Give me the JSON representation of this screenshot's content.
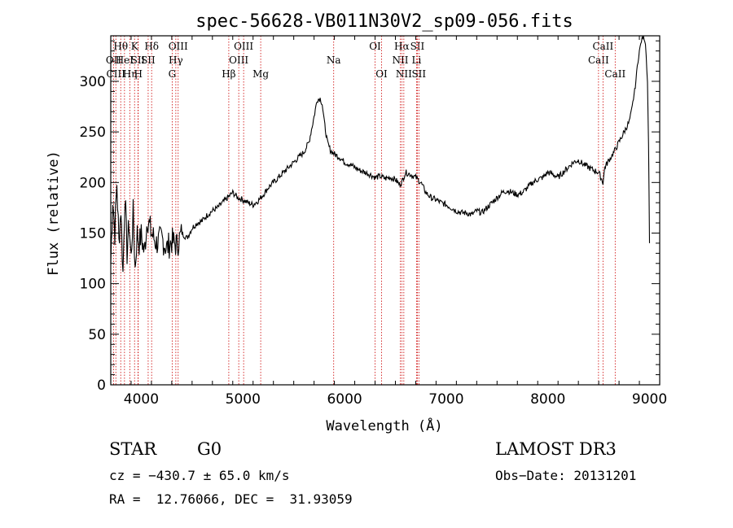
{
  "chart_data": {
    "type": "line",
    "title": "spec-56628-VB011N30V2_sp09-056.fits",
    "xlabel": "Wavelength (Å)",
    "ylabel": "Flux (relative)",
    "xlim": [
      3700,
      9100
    ],
    "ylim": [
      0,
      345
    ],
    "xticks": [
      4000,
      5000,
      6000,
      7000,
      8000,
      9000
    ],
    "yticks": [
      0,
      50,
      100,
      150,
      200,
      250,
      300
    ],
    "grid": false,
    "series": [
      {
        "name": "flux",
        "x": [
          3700,
          3720,
          3740,
          3760,
          3780,
          3800,
          3820,
          3840,
          3860,
          3880,
          3900,
          3920,
          3940,
          3960,
          3980,
          4000,
          4030,
          4060,
          4100,
          4150,
          4200,
          4250,
          4300,
          4350,
          4400,
          4450,
          4500,
          4550,
          4600,
          4650,
          4700,
          4750,
          4800,
          4850,
          4900,
          4950,
          5000,
          5050,
          5100,
          5150,
          5200,
          5250,
          5300,
          5350,
          5400,
          5450,
          5500,
          5550,
          5600,
          5650,
          5700,
          5730,
          5760,
          5780,
          5800,
          5830,
          5860,
          5900,
          5950,
          6000,
          6050,
          6100,
          6150,
          6200,
          6250,
          6300,
          6350,
          6400,
          6450,
          6500,
          6540,
          6563,
          6580,
          6600,
          6650,
          6700,
          6750,
          6800,
          6850,
          6900,
          6950,
          7000,
          7050,
          7100,
          7150,
          7200,
          7250,
          7300,
          7350,
          7400,
          7450,
          7500,
          7550,
          7600,
          7650,
          7700,
          7750,
          7800,
          7850,
          7900,
          7950,
          8000,
          8050,
          8100,
          8150,
          8200,
          8250,
          8300,
          8350,
          8400,
          8450,
          8500,
          8542,
          8560,
          8600,
          8650,
          8700,
          8750,
          8800,
          8830,
          8860,
          8880,
          8900,
          8920,
          8940,
          8960,
          8980,
          8990,
          9000
        ],
        "values": [
          120,
          185,
          150,
          200,
          140,
          175,
          110,
          190,
          130,
          160,
          125,
          170,
          115,
          150,
          140,
          148,
          130,
          165,
          150,
          140,
          145,
          135,
          142,
          138,
          150,
          145,
          155,
          160,
          162,
          168,
          172,
          175,
          180,
          185,
          190,
          185,
          183,
          180,
          178,
          182,
          188,
          195,
          200,
          205,
          210,
          215,
          220,
          225,
          230,
          240,
          265,
          282,
          283,
          278,
          260,
          240,
          232,
          228,
          225,
          220,
          218,
          215,
          212,
          210,
          208,
          205,
          206,
          204,
          205,
          203,
          198,
          200,
          205,
          210,
          208,
          205,
          200,
          190,
          185,
          183,
          180,
          178,
          175,
          172,
          170,
          170,
          168,
          172,
          170,
          175,
          180,
          185,
          190,
          192,
          190,
          188,
          190,
          195,
          200,
          203,
          205,
          210,
          208,
          205,
          210,
          215,
          220,
          222,
          218,
          215,
          212,
          210,
          200,
          215,
          222,
          230,
          240,
          250,
          260,
          275,
          295,
          315,
          330,
          340,
          345,
          338,
          300,
          240,
          140
        ]
      }
    ],
    "lines": [
      {
        "wave": 3728,
        "label": "OII",
        "row": 2
      },
      {
        "wave": 3750,
        "label": "CIII",
        "row": 3
      },
      {
        "wave": 3798,
        "label": "Hθ",
        "row": 1
      },
      {
        "wave": 3835,
        "label": "HeI",
        "row": 2
      },
      {
        "wave": 3889,
        "label": "Hη",
        "row": 3
      },
      {
        "wave": 3934,
        "label": "K",
        "row": 1
      },
      {
        "wave": 3968,
        "label": "SII",
        "row": 2
      },
      {
        "wave": 3970,
        "label": "H",
        "row": 3
      },
      {
        "wave": 4102,
        "label": "Hδ",
        "row": 1
      },
      {
        "wave": 4068,
        "label": "SII",
        "row": 2
      },
      {
        "wave": 4304,
        "label": "G",
        "row": 3
      },
      {
        "wave": 4340,
        "label": "Hγ",
        "row": 2
      },
      {
        "wave": 4363,
        "label": "OIII",
        "row": 1
      },
      {
        "wave": 4861,
        "label": "Hβ",
        "row": 3
      },
      {
        "wave": 4959,
        "label": "OIII",
        "row": 2
      },
      {
        "wave": 5007,
        "label": "OIII",
        "row": 1
      },
      {
        "wave": 5175,
        "label": "Mg",
        "row": 3
      },
      {
        "wave": 5893,
        "label": "Na",
        "row": 2
      },
      {
        "wave": 6300,
        "label": "OI",
        "row": 1
      },
      {
        "wave": 6364,
        "label": "OI",
        "row": 3
      },
      {
        "wave": 6548,
        "label": "NII",
        "row": 2
      },
      {
        "wave": 6563,
        "label": "Hα",
        "row": 1
      },
      {
        "wave": 6583,
        "label": "NII",
        "row": 3
      },
      {
        "wave": 6708,
        "label": "Li",
        "row": 2
      },
      {
        "wave": 6716,
        "label": "SII",
        "row": 1
      },
      {
        "wave": 6731,
        "label": "SII",
        "row": 3
      },
      {
        "wave": 8498,
        "label": "CaII",
        "row": 2
      },
      {
        "wave": 8542,
        "label": "CaII",
        "row": 1
      },
      {
        "wave": 8662,
        "label": "CaII",
        "row": 3
      }
    ]
  },
  "info": {
    "class_label": "STAR",
    "subclass": "G0",
    "survey": "LAMOST DR3",
    "cz": "cz = −430.7 ± 65.0 km/s",
    "obs_date": "Obs−Date: 20131201",
    "radec": "RA =  12.76066, DEC =  31.93059"
  },
  "colors": {
    "axis": "#000000",
    "spectrum": "#000000",
    "line_marker": "#cc0000"
  }
}
